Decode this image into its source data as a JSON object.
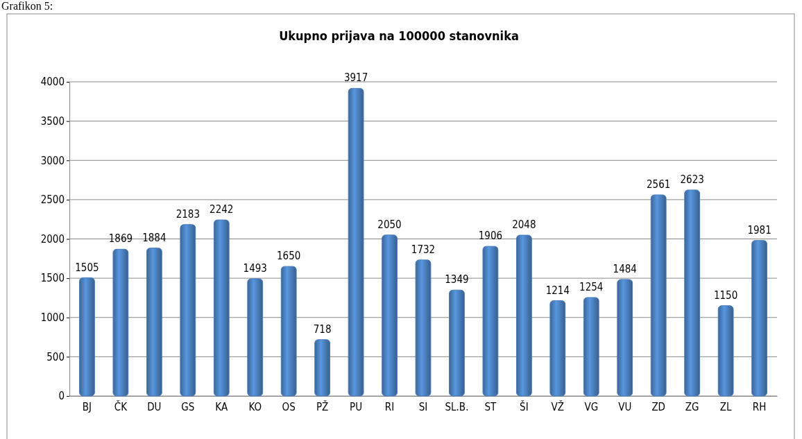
{
  "chart_data": {
    "type": "bar",
    "title": "Ukupno prijava na 100000 stanovnika",
    "categories": [
      "BJ",
      "ČK",
      "DU",
      "GS",
      "KA",
      "KO",
      "OS",
      "PŽ",
      "PU",
      "RI",
      "SI",
      "SL.B.",
      "ST",
      "ŠI",
      "VŽ",
      "VG",
      "VU",
      "ZD",
      "ZG",
      "ZL",
      "RH"
    ],
    "values": [
      1505,
      1869,
      1884,
      2183,
      2242,
      1493,
      1650,
      718,
      3917,
      2050,
      1732,
      1349,
      1906,
      2048,
      1214,
      1254,
      1484,
      2561,
      2623,
      1150,
      1981
    ],
    "color": "#4a7ebb",
    "ylim": [
      0,
      4000
    ],
    "yticks": [
      0,
      500,
      1000,
      1500,
      2000,
      2500,
      3000,
      3500,
      4000
    ],
    "grid": "y",
    "data_labels": true,
    "annotations": [
      "Grafikon 5:"
    ]
  }
}
